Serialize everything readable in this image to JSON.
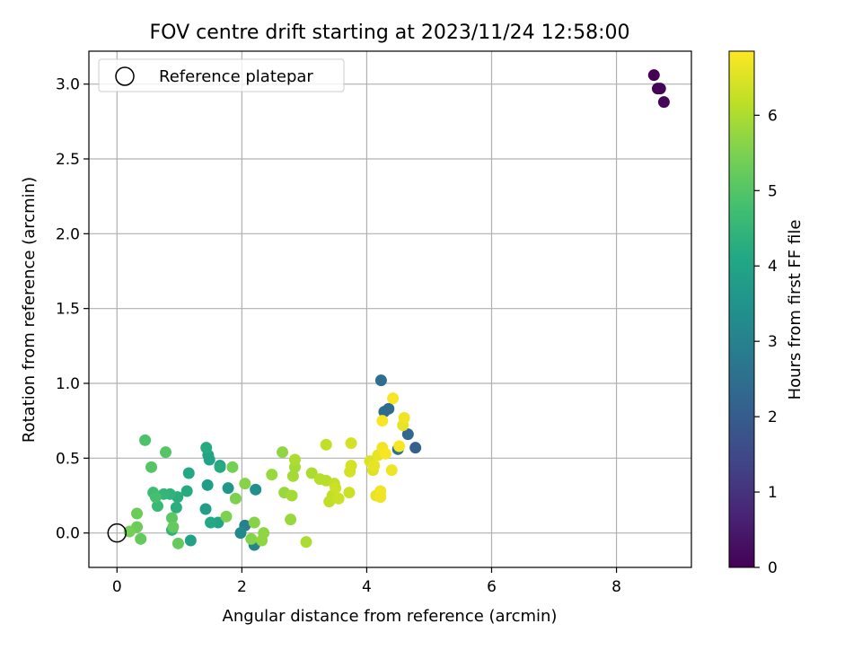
{
  "chart_data": {
    "type": "scatter",
    "title": "FOV centre drift starting at 2023/11/24 12:58:00",
    "xlabel": "Angular distance from reference (arcmin)",
    "ylabel": "Rotation from reference (arcmin)",
    "xlim": [
      -0.45,
      9.2
    ],
    "ylim": [
      -0.23,
      3.22
    ],
    "xticks": [
      0,
      2,
      4,
      6,
      8
    ],
    "yticks": [
      0.0,
      0.5,
      1.0,
      1.5,
      2.0,
      2.5,
      3.0
    ],
    "grid": true,
    "legend": {
      "position": "top-left",
      "entries": [
        "Reference platepar"
      ]
    },
    "reference_point": {
      "x": 0,
      "y": 0
    },
    "colorbar": {
      "label": "Hours from first FF file",
      "range": [
        0,
        6.85
      ],
      "ticks": [
        0,
        1,
        2,
        3,
        4,
        5,
        6
      ],
      "colormap": "viridis"
    },
    "points": [
      {
        "x": 8.6,
        "y": 3.06,
        "c": 0.0
      },
      {
        "x": 8.66,
        "y": 2.97,
        "c": 0.05
      },
      {
        "x": 8.7,
        "y": 2.97,
        "c": 0.08
      },
      {
        "x": 8.76,
        "y": 2.88,
        "c": 0.1
      },
      {
        "x": 4.23,
        "y": 1.02,
        "c": 2.5
      },
      {
        "x": 4.28,
        "y": 0.81,
        "c": 2.45
      },
      {
        "x": 4.35,
        "y": 0.83,
        "c": 2.4
      },
      {
        "x": 4.66,
        "y": 0.66,
        "c": 2.3
      },
      {
        "x": 4.78,
        "y": 0.57,
        "c": 2.1
      },
      {
        "x": 4.5,
        "y": 0.56,
        "c": 2.6
      },
      {
        "x": 2.05,
        "y": 0.05,
        "c": 3.0
      },
      {
        "x": 2.2,
        "y": -0.08,
        "c": 3.1
      },
      {
        "x": 1.98,
        "y": 0.0,
        "c": 3.2
      },
      {
        "x": 2.22,
        "y": 0.29,
        "c": 3.4
      },
      {
        "x": 1.78,
        "y": 0.3,
        "c": 3.6
      },
      {
        "x": 1.65,
        "y": 0.45,
        "c": 3.8
      },
      {
        "x": 1.45,
        "y": 0.32,
        "c": 3.8
      },
      {
        "x": 1.42,
        "y": 0.16,
        "c": 3.8
      },
      {
        "x": 1.18,
        "y": -0.05,
        "c": 3.9
      },
      {
        "x": 1.62,
        "y": 0.07,
        "c": 4.0
      },
      {
        "x": 1.5,
        "y": 0.07,
        "c": 4.1
      },
      {
        "x": 1.48,
        "y": 0.49,
        "c": 4.0
      },
      {
        "x": 1.46,
        "y": 0.52,
        "c": 4.0
      },
      {
        "x": 1.43,
        "y": 0.57,
        "c": 4.2
      },
      {
        "x": 1.65,
        "y": 0.44,
        "c": 4.2
      },
      {
        "x": 1.15,
        "y": 0.4,
        "c": 4.1
      },
      {
        "x": 1.12,
        "y": 0.28,
        "c": 4.2
      },
      {
        "x": 0.97,
        "y": 0.24,
        "c": 4.3
      },
      {
        "x": 0.95,
        "y": 0.17,
        "c": 4.3
      },
      {
        "x": 0.88,
        "y": 0.02,
        "c": 4.4
      },
      {
        "x": 0.85,
        "y": 0.26,
        "c": 4.4
      },
      {
        "x": 0.75,
        "y": 0.26,
        "c": 4.5
      },
      {
        "x": 0.65,
        "y": 0.18,
        "c": 4.6
      },
      {
        "x": 0.58,
        "y": 0.27,
        "c": 4.7
      },
      {
        "x": 0.62,
        "y": 0.24,
        "c": 4.8
      },
      {
        "x": 0.55,
        "y": 0.44,
        "c": 5.0
      },
      {
        "x": 0.45,
        "y": 0.62,
        "c": 4.9
      },
      {
        "x": 0.78,
        "y": 0.54,
        "c": 5.0
      },
      {
        "x": 0.88,
        "y": 0.1,
        "c": 5.1
      },
      {
        "x": 0.9,
        "y": 0.04,
        "c": 5.2
      },
      {
        "x": 0.98,
        "y": -0.07,
        "c": 5.2
      },
      {
        "x": 0.38,
        "y": -0.04,
        "c": 5.2
      },
      {
        "x": 0.32,
        "y": 0.04,
        "c": 5.3
      },
      {
        "x": 0.32,
        "y": 0.13,
        "c": 5.3
      },
      {
        "x": 0.2,
        "y": 0.01,
        "c": 5.4
      },
      {
        "x": 1.85,
        "y": 0.44,
        "c": 5.4
      },
      {
        "x": 1.9,
        "y": 0.23,
        "c": 5.5
      },
      {
        "x": 1.75,
        "y": 0.11,
        "c": 5.5
      },
      {
        "x": 2.05,
        "y": 0.33,
        "c": 5.6
      },
      {
        "x": 2.2,
        "y": 0.07,
        "c": 5.6
      },
      {
        "x": 2.15,
        "y": -0.04,
        "c": 5.6
      },
      {
        "x": 2.32,
        "y": -0.05,
        "c": 5.7
      },
      {
        "x": 2.35,
        "y": 0.0,
        "c": 5.7
      },
      {
        "x": 2.48,
        "y": 0.39,
        "c": 5.8
      },
      {
        "x": 2.65,
        "y": 0.54,
        "c": 5.7
      },
      {
        "x": 2.68,
        "y": 0.27,
        "c": 5.8
      },
      {
        "x": 2.78,
        "y": 0.09,
        "c": 5.8
      },
      {
        "x": 2.8,
        "y": 0.25,
        "c": 5.9
      },
      {
        "x": 2.82,
        "y": 0.38,
        "c": 5.9
      },
      {
        "x": 2.85,
        "y": 0.44,
        "c": 5.9
      },
      {
        "x": 2.85,
        "y": 0.49,
        "c": 6.0
      },
      {
        "x": 3.03,
        "y": -0.06,
        "c": 6.0
      },
      {
        "x": 3.12,
        "y": 0.4,
        "c": 6.0
      },
      {
        "x": 3.25,
        "y": 0.36,
        "c": 6.1
      },
      {
        "x": 3.35,
        "y": 0.35,
        "c": 6.1
      },
      {
        "x": 3.35,
        "y": 0.59,
        "c": 6.2
      },
      {
        "x": 3.4,
        "y": 0.21,
        "c": 6.2
      },
      {
        "x": 3.45,
        "y": 0.25,
        "c": 6.2
      },
      {
        "x": 3.48,
        "y": 0.33,
        "c": 6.2
      },
      {
        "x": 3.5,
        "y": 0.3,
        "c": 6.3
      },
      {
        "x": 3.55,
        "y": 0.23,
        "c": 6.3
      },
      {
        "x": 3.72,
        "y": 0.27,
        "c": 6.3
      },
      {
        "x": 3.73,
        "y": 0.41,
        "c": 6.4
      },
      {
        "x": 3.75,
        "y": 0.45,
        "c": 6.4
      },
      {
        "x": 3.75,
        "y": 0.6,
        "c": 6.4
      },
      {
        "x": 4.05,
        "y": 0.48,
        "c": 6.5
      },
      {
        "x": 4.1,
        "y": 0.42,
        "c": 6.5
      },
      {
        "x": 4.12,
        "y": 0.45,
        "c": 6.6
      },
      {
        "x": 4.15,
        "y": 0.25,
        "c": 6.6
      },
      {
        "x": 4.18,
        "y": 0.52,
        "c": 6.6
      },
      {
        "x": 4.22,
        "y": 0.28,
        "c": 6.7
      },
      {
        "x": 4.22,
        "y": 0.24,
        "c": 6.7
      },
      {
        "x": 4.25,
        "y": 0.57,
        "c": 6.7
      },
      {
        "x": 4.25,
        "y": 0.75,
        "c": 6.8
      },
      {
        "x": 4.3,
        "y": 0.53,
        "c": 6.8
      },
      {
        "x": 4.4,
        "y": 0.42,
        "c": 6.7
      },
      {
        "x": 4.42,
        "y": 0.9,
        "c": 6.8
      },
      {
        "x": 4.52,
        "y": 0.58,
        "c": 6.8
      },
      {
        "x": 4.58,
        "y": 0.72,
        "c": 6.6
      },
      {
        "x": 4.6,
        "y": 0.77,
        "c": 6.7
      }
    ]
  }
}
